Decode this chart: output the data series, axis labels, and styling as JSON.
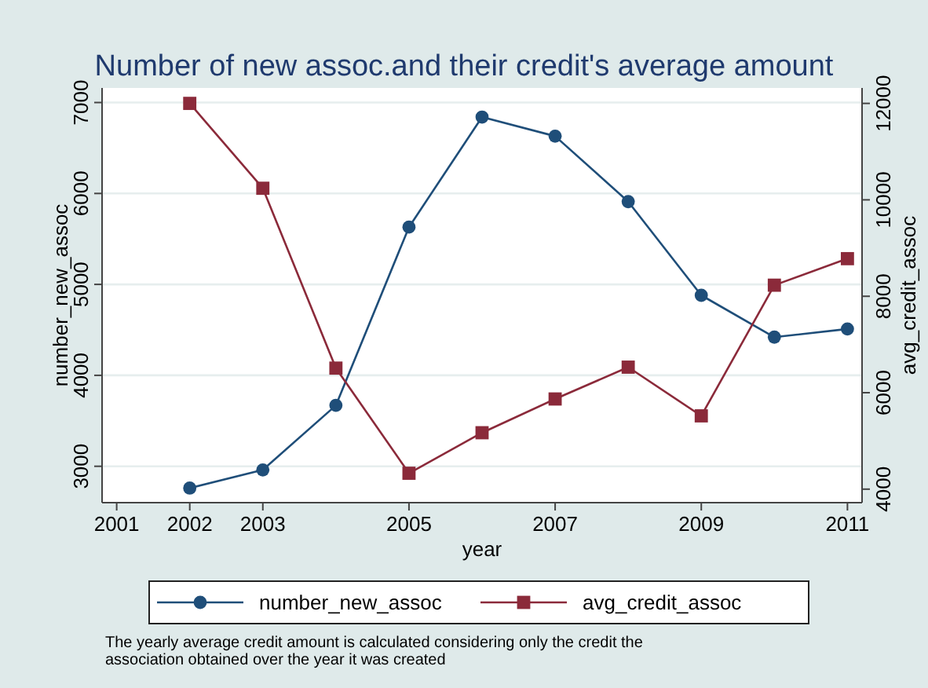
{
  "chart_data": {
    "type": "line",
    "title": "Number of new assoc.and their credit's average amount",
    "xlabel": "year",
    "ylabel": "number_new_assoc",
    "y2label": "avg_credit_assoc",
    "x": [
      2002,
      2003,
      2004,
      2005,
      2006,
      2007,
      2008,
      2009,
      2010,
      2011
    ],
    "series": [
      {
        "name": "number_new_assoc",
        "color": "#1f4e79",
        "marker": "circle",
        "values": [
          2760,
          2960,
          3670,
          5630,
          6840,
          6630,
          5910,
          4880,
          4420,
          4510
        ]
      },
      {
        "name": "avg_credit_assoc",
        "color": "#8b2a3a",
        "marker": "square",
        "axis": "y2",
        "values": [
          12000,
          10240,
          6510,
          4330,
          5170,
          5870,
          6530,
          5520,
          8230,
          8780
        ]
      }
    ],
    "xlim": [
      2000.8,
      2011.2
    ],
    "xticks": [
      2001,
      2002,
      2003,
      2005,
      2007,
      2009,
      2011
    ],
    "ylim": [
      2600,
      7160
    ],
    "yticks": [
      3000,
      4000,
      5000,
      6000,
      7000
    ],
    "y2lim": [
      3720,
      12320
    ],
    "y2ticks": [
      4000,
      6000,
      8000,
      10000,
      12000
    ],
    "grid": "y",
    "legend": "bottom",
    "line_style": "solid",
    "annotations": [
      "The yearly average credit amount is calculated considering only the credit the association obtained over the year it was created"
    ]
  }
}
